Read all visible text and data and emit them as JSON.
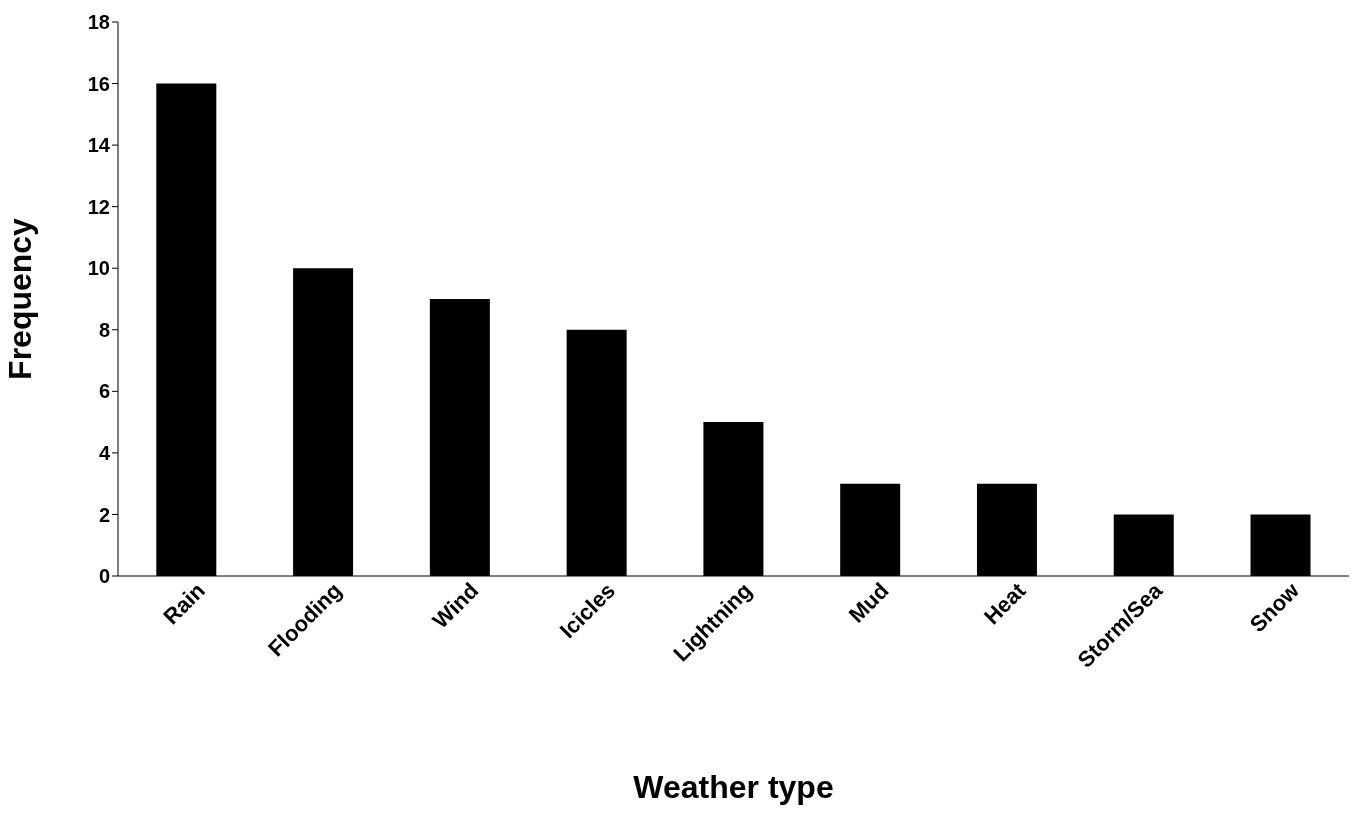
{
  "chart_data": {
    "type": "bar",
    "xlabel": "Weather type",
    "ylabel": "Frequency",
    "categories": [
      "Rain",
      "Flooding",
      "Wind",
      "Icicles",
      "Lightning",
      "Mud",
      "Heat",
      "Storm/Sea",
      "Snow"
    ],
    "values": [
      16,
      10,
      9,
      8,
      5,
      3,
      3,
      2,
      2
    ],
    "color": "#000000",
    "ylim": [
      0,
      18
    ],
    "yticks": [
      0,
      2,
      4,
      6,
      8,
      10,
      12,
      14,
      16,
      18
    ]
  }
}
